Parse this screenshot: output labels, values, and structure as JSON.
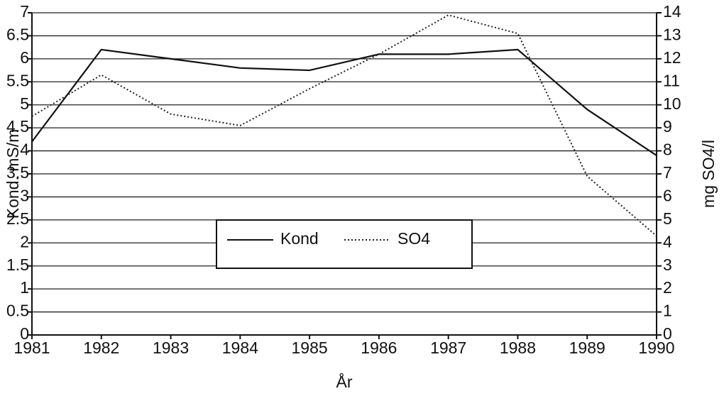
{
  "chart_data": {
    "type": "line",
    "x_label": "År",
    "y_label": "Kond. mS/m",
    "y2_label": "mg SO4/l",
    "x": [
      1981,
      1982,
      1983,
      1984,
      1985,
      1986,
      1987,
      1988,
      1989,
      1990
    ],
    "xlim": [
      1981,
      1990
    ],
    "xticks": [
      1981,
      1982,
      1983,
      1984,
      1985,
      1986,
      1987,
      1988,
      1989,
      1990
    ],
    "ylim": [
      0,
      7
    ],
    "yticks": [
      0,
      0.5,
      1,
      1.5,
      2,
      2.5,
      3,
      3.5,
      4,
      4.5,
      5,
      5.5,
      6,
      6.5,
      7
    ],
    "y2lim": [
      0,
      14
    ],
    "y2ticks": [
      0,
      1,
      2,
      3,
      4,
      5,
      6,
      7,
      8,
      9,
      10,
      11,
      12,
      13,
      14
    ],
    "grid": true,
    "series": [
      {
        "name": "Kond",
        "color": "#111111",
        "style": "solid",
        "values": [
          4.2,
          6.2,
          6.0,
          5.8,
          5.75,
          6.1,
          6.1,
          6.2,
          4.9,
          3.9
        ]
      },
      {
        "name": "SO4",
        "color": "#222222",
        "style": "dotted",
        "axis": "y2",
        "values": [
          9.5,
          11.3,
          9.6,
          9.1,
          10.7,
          12.2,
          13.9,
          13.1,
          6.9,
          4.3
        ]
      }
    ]
  }
}
